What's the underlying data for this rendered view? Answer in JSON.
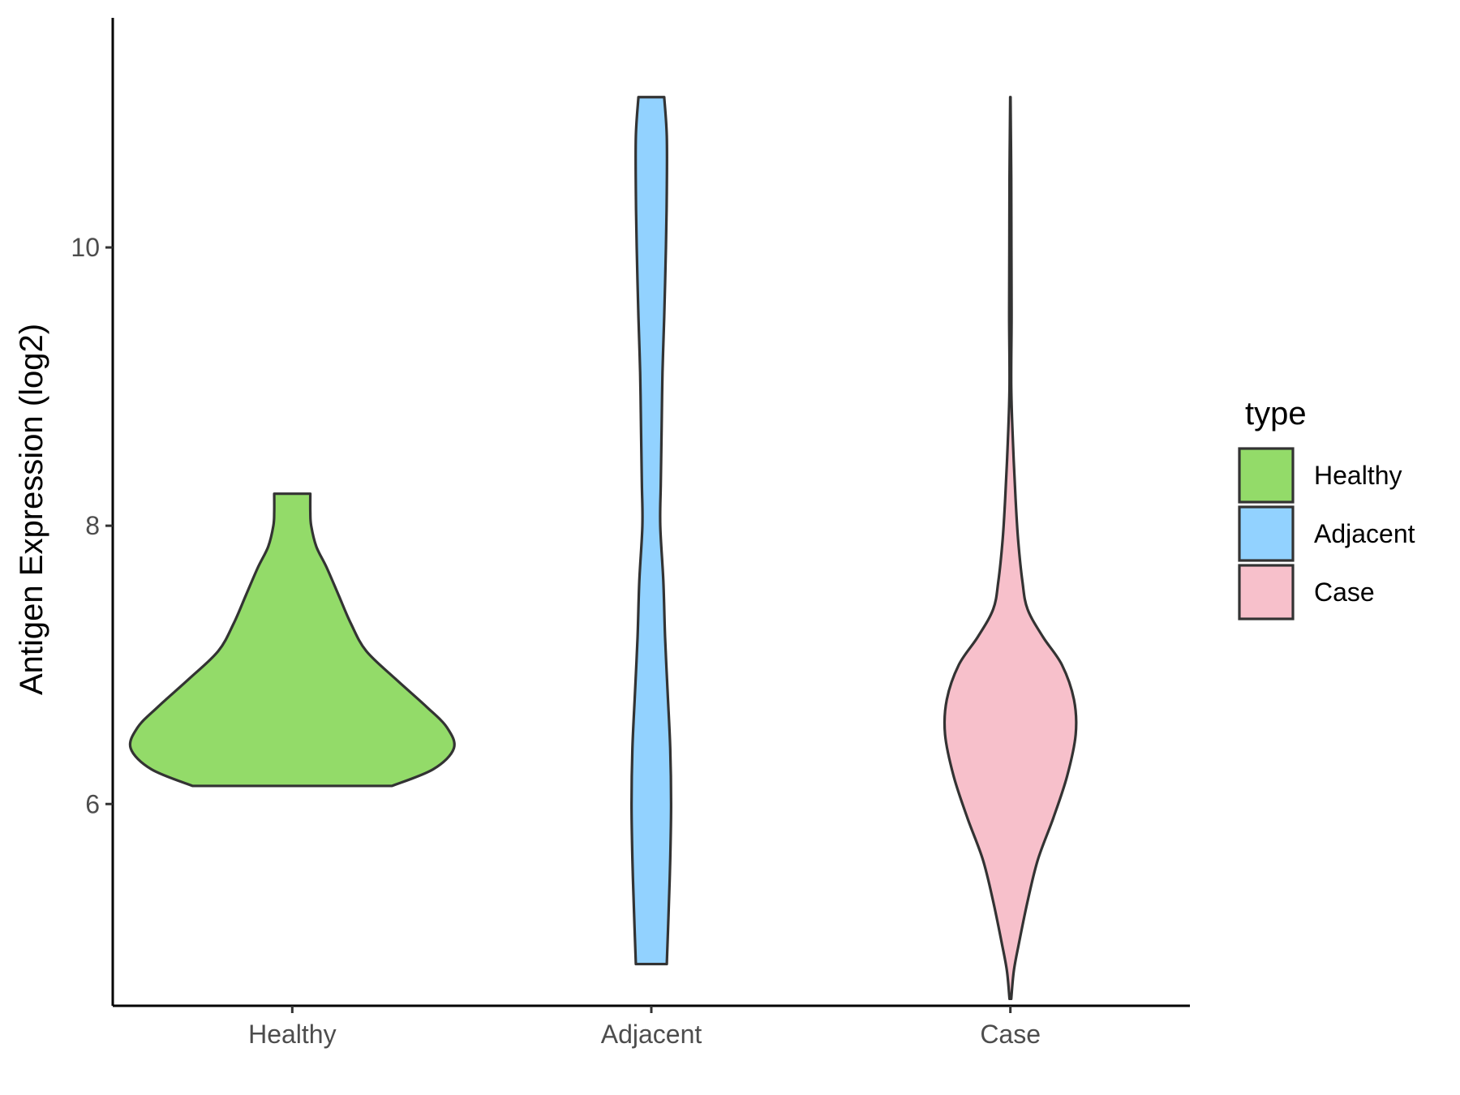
{
  "chart_data": {
    "type": "violin",
    "title": "",
    "xlabel": "",
    "ylabel": "Antigen Expression (log2)",
    "ylim": [
      4.55,
      11.65
    ],
    "y_ticks": [
      6,
      8,
      10
    ],
    "categories": [
      "Healthy",
      "Adjacent",
      "Case"
    ],
    "series": [
      {
        "name": "Healthy",
        "color": "#93DB69",
        "min": 6.13,
        "max": 8.23,
        "density": [
          [
            6.13,
            0.58
          ],
          [
            6.25,
            0.82
          ],
          [
            6.4,
            0.94
          ],
          [
            6.55,
            0.9
          ],
          [
            6.7,
            0.78
          ],
          [
            6.9,
            0.6
          ],
          [
            7.1,
            0.43
          ],
          [
            7.3,
            0.34
          ],
          [
            7.5,
            0.27
          ],
          [
            7.7,
            0.2
          ],
          [
            7.85,
            0.14
          ],
          [
            8.0,
            0.11
          ],
          [
            8.1,
            0.105
          ],
          [
            8.23,
            0.105
          ]
        ]
      },
      {
        "name": "Adjacent",
        "color": "#92D2FF",
        "min": 4.85,
        "max": 11.08,
        "density": [
          [
            4.85,
            0.09
          ],
          [
            5.2,
            0.1
          ],
          [
            5.6,
            0.11
          ],
          [
            6.0,
            0.115
          ],
          [
            6.4,
            0.11
          ],
          [
            6.8,
            0.095
          ],
          [
            7.2,
            0.08
          ],
          [
            7.6,
            0.07
          ],
          [
            8.0,
            0.052
          ],
          [
            8.3,
            0.055
          ],
          [
            8.7,
            0.06
          ],
          [
            9.1,
            0.065
          ],
          [
            9.5,
            0.075
          ],
          [
            10.0,
            0.085
          ],
          [
            10.4,
            0.09
          ],
          [
            10.8,
            0.09
          ],
          [
            11.08,
            0.075
          ]
        ]
      },
      {
        "name": "Case",
        "color": "#F7C0CB",
        "min": 4.6,
        "max": 11.08,
        "density": [
          [
            4.6,
            0.005
          ],
          [
            4.8,
            0.02
          ],
          [
            5.0,
            0.05
          ],
          [
            5.3,
            0.1
          ],
          [
            5.6,
            0.16
          ],
          [
            5.9,
            0.25
          ],
          [
            6.2,
            0.33
          ],
          [
            6.5,
            0.38
          ],
          [
            6.75,
            0.37
          ],
          [
            7.0,
            0.3
          ],
          [
            7.2,
            0.19
          ],
          [
            7.4,
            0.1
          ],
          [
            7.6,
            0.07
          ],
          [
            7.9,
            0.045
          ],
          [
            8.2,
            0.03
          ],
          [
            8.6,
            0.015
          ],
          [
            9.0,
            0.005
          ],
          [
            9.5,
            0.007
          ],
          [
            10.0,
            0.006
          ],
          [
            10.5,
            0.005
          ],
          [
            10.8,
            0.003
          ],
          [
            11.08,
            0.001
          ]
        ]
      }
    ],
    "legend": {
      "title": "type",
      "position": "right",
      "entries": [
        "Healthy",
        "Adjacent",
        "Case"
      ]
    },
    "grid": false
  }
}
